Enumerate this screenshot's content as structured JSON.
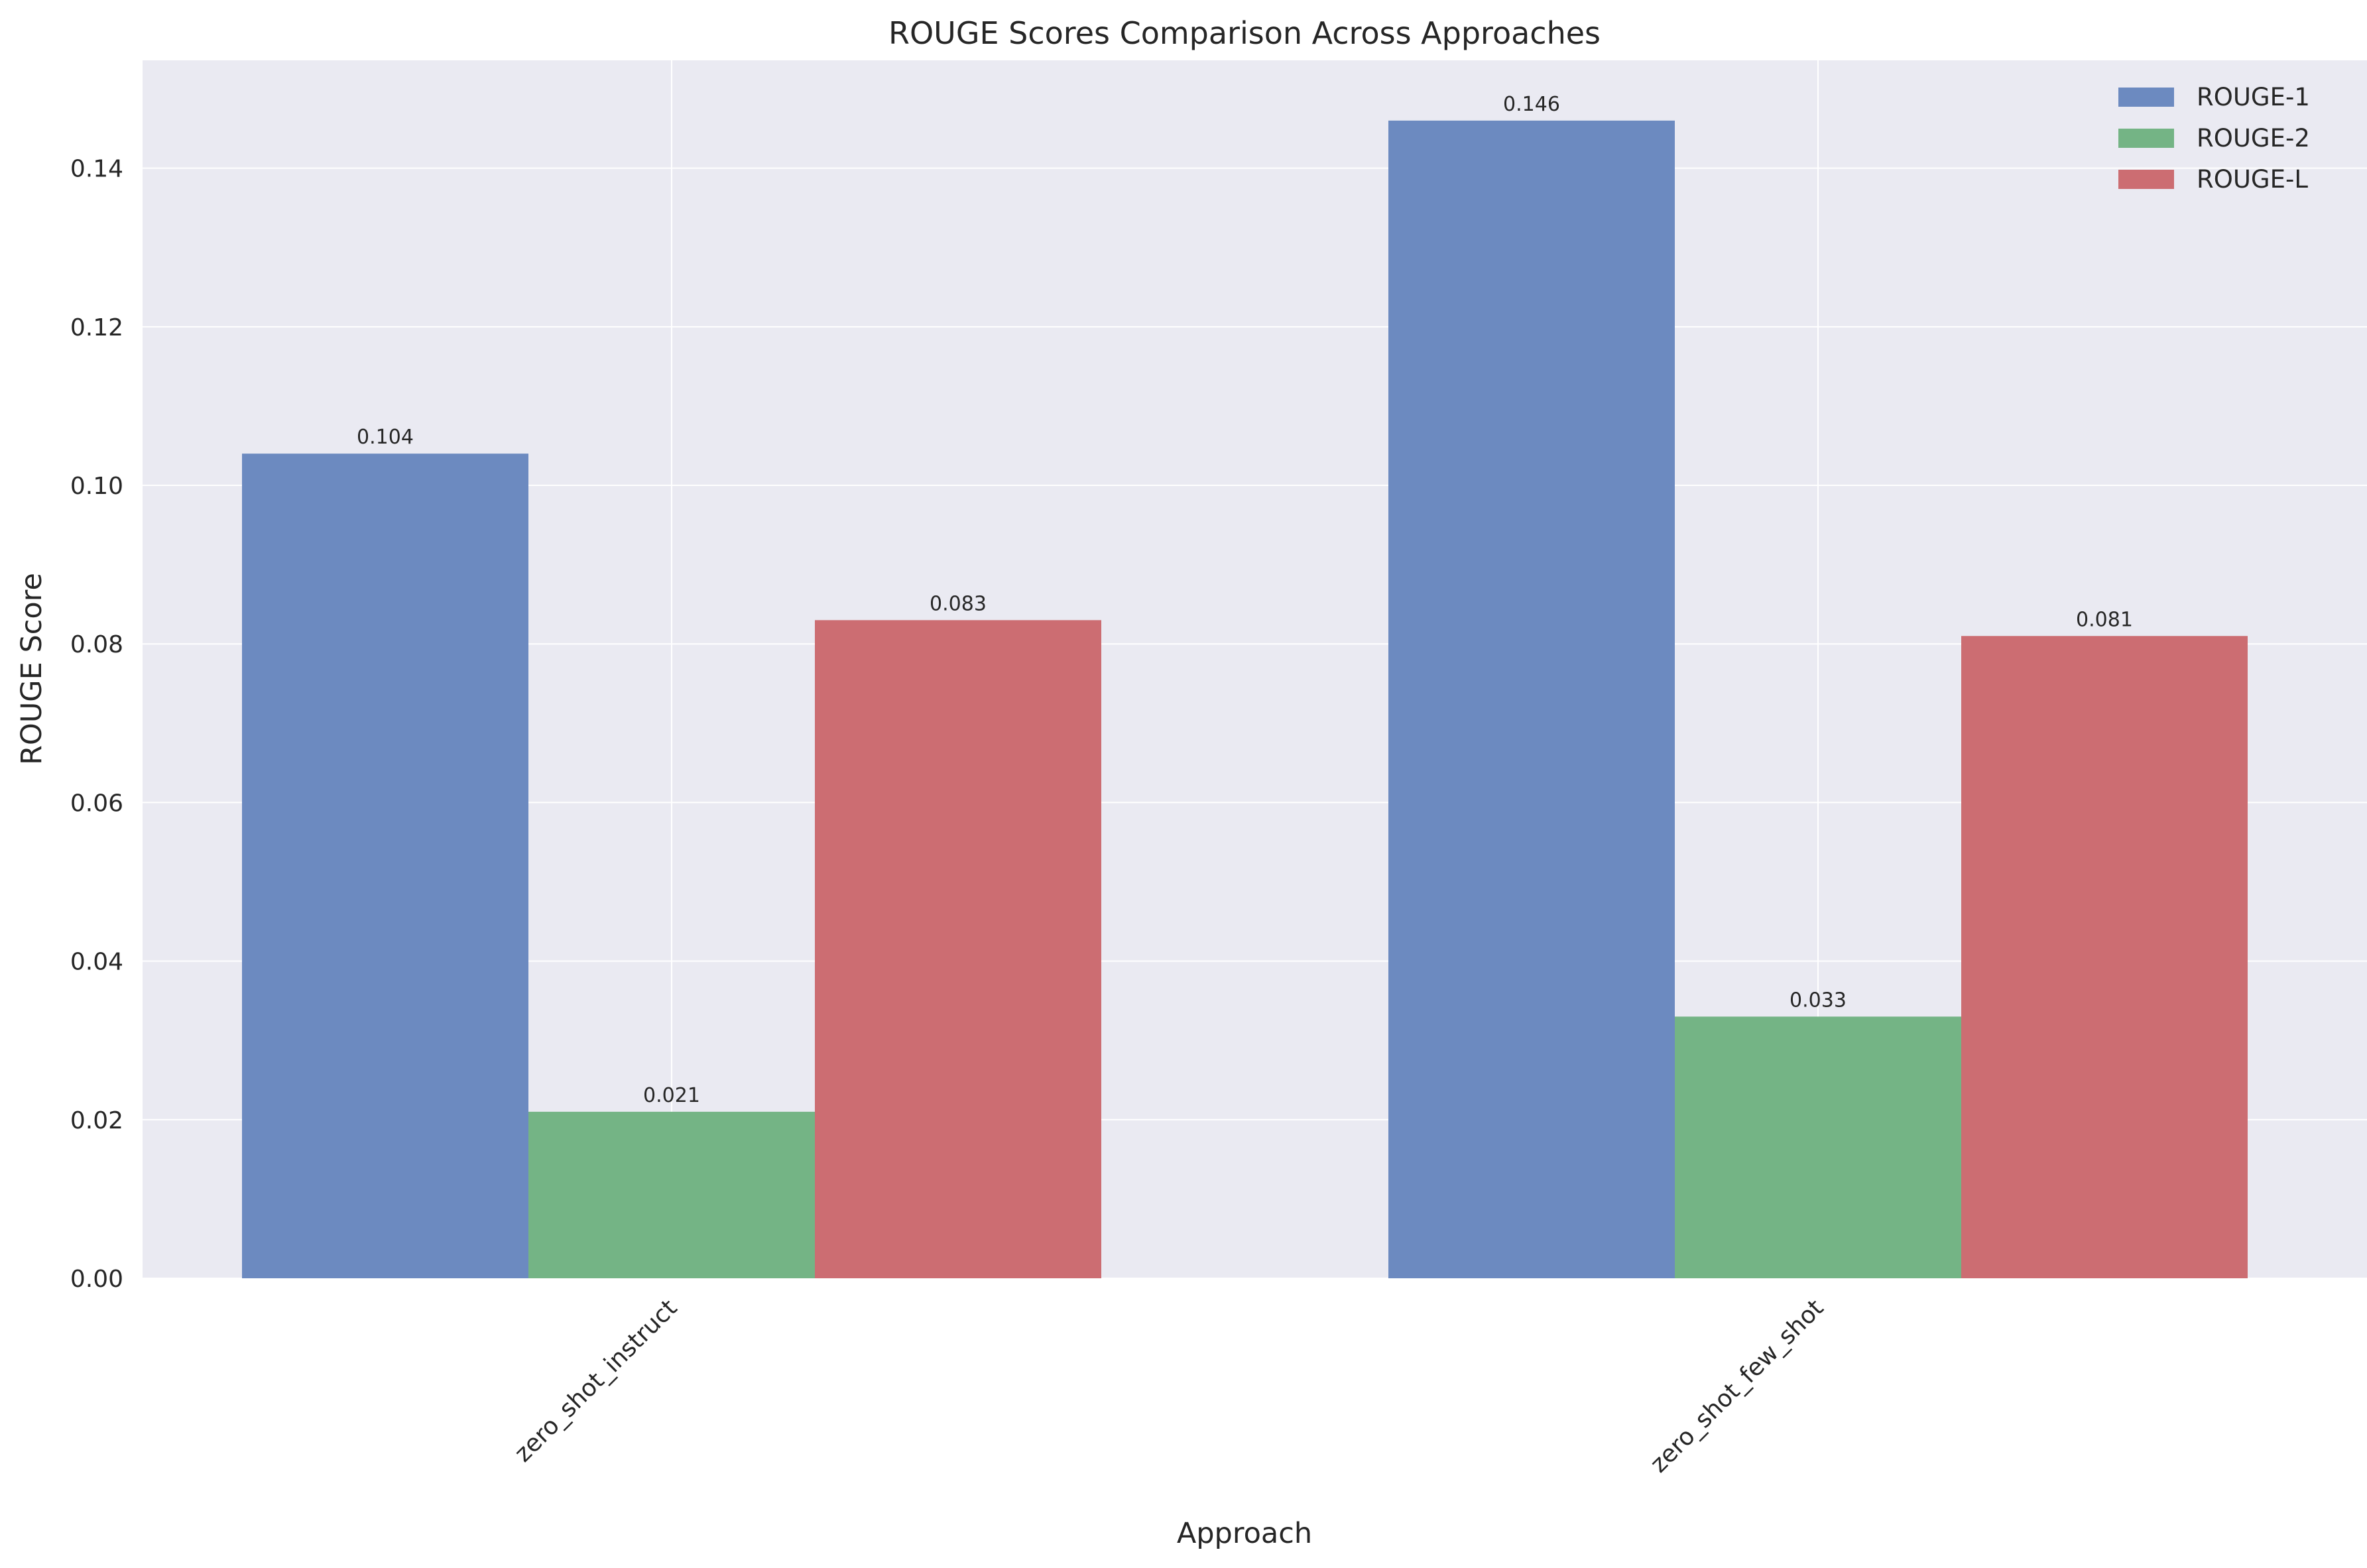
{
  "chart_data": {
    "type": "bar",
    "title": "ROUGE Scores Comparison Across Approaches",
    "xlabel": "Approach",
    "ylabel": "ROUGE Score",
    "categories": [
      "zero_shot_instruct",
      "zero_shot_few_shot"
    ],
    "series": [
      {
        "name": "ROUGE-1",
        "values": [
          0.104,
          0.146
        ],
        "labels": [
          "0.104",
          "0.146"
        ],
        "color": "#6c8ac0"
      },
      {
        "name": "ROUGE-2",
        "values": [
          0.021,
          0.033
        ],
        "labels": [
          "0.021",
          "0.033"
        ],
        "color": "#74b485"
      },
      {
        "name": "ROUGE-L",
        "values": [
          0.083,
          0.081
        ],
        "labels": [
          "0.083",
          "0.081"
        ],
        "color": "#cc6d72"
      }
    ],
    "ylim": [
      0,
      0.1536
    ],
    "yticks": [
      "0.00",
      "0.02",
      "0.04",
      "0.06",
      "0.08",
      "0.10",
      "0.12",
      "0.14"
    ],
    "grid": true,
    "legend_position": "top-right",
    "background_color": "#eaeaf2"
  }
}
